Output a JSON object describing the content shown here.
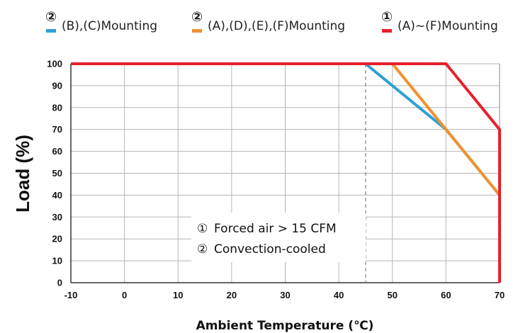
{
  "chart_data": {
    "type": "line",
    "title": "",
    "xlabel": "Ambient Temperature (℃)",
    "ylabel": "Load (%)",
    "xlim": [
      -10,
      70
    ],
    "ylim": [
      0,
      100
    ],
    "x_ticks": [
      "-10",
      "0",
      "10",
      "20",
      "30",
      "40",
      "50",
      "60",
      "70"
    ],
    "y_ticks": [
      "0",
      "10",
      "20",
      "30",
      "40",
      "50",
      "60",
      "70",
      "80",
      "90",
      "100"
    ],
    "grid": true,
    "legend_position": "top",
    "series": [
      {
        "name": "(B),(C)Mounting",
        "legend_mark": "②",
        "color": "#2ea0d6",
        "points": [
          [
            -10,
            100
          ],
          [
            45,
            100
          ],
          [
            60,
            70
          ],
          [
            70,
            40
          ],
          [
            70,
            0
          ]
        ]
      },
      {
        "name": "(A),(D),(E),(F)Mounting",
        "legend_mark": "②",
        "color": "#f0922f",
        "points": [
          [
            -10,
            100
          ],
          [
            50,
            100
          ],
          [
            70,
            40
          ],
          [
            70,
            0
          ]
        ]
      },
      {
        "name": "(A)~(F)Mounting",
        "legend_mark": "①",
        "color": "#e8202a",
        "points": [
          [
            -10,
            100
          ],
          [
            60,
            100
          ],
          [
            70,
            70
          ],
          [
            70,
            0
          ]
        ]
      }
    ],
    "reference_line": {
      "x": 45,
      "style": "dashed",
      "color": "#888888"
    },
    "annotations": [
      {
        "mark": "①",
        "text": "Forced air > 15 CFM"
      },
      {
        "mark": "②",
        "text": "Convection-cooled"
      }
    ]
  }
}
